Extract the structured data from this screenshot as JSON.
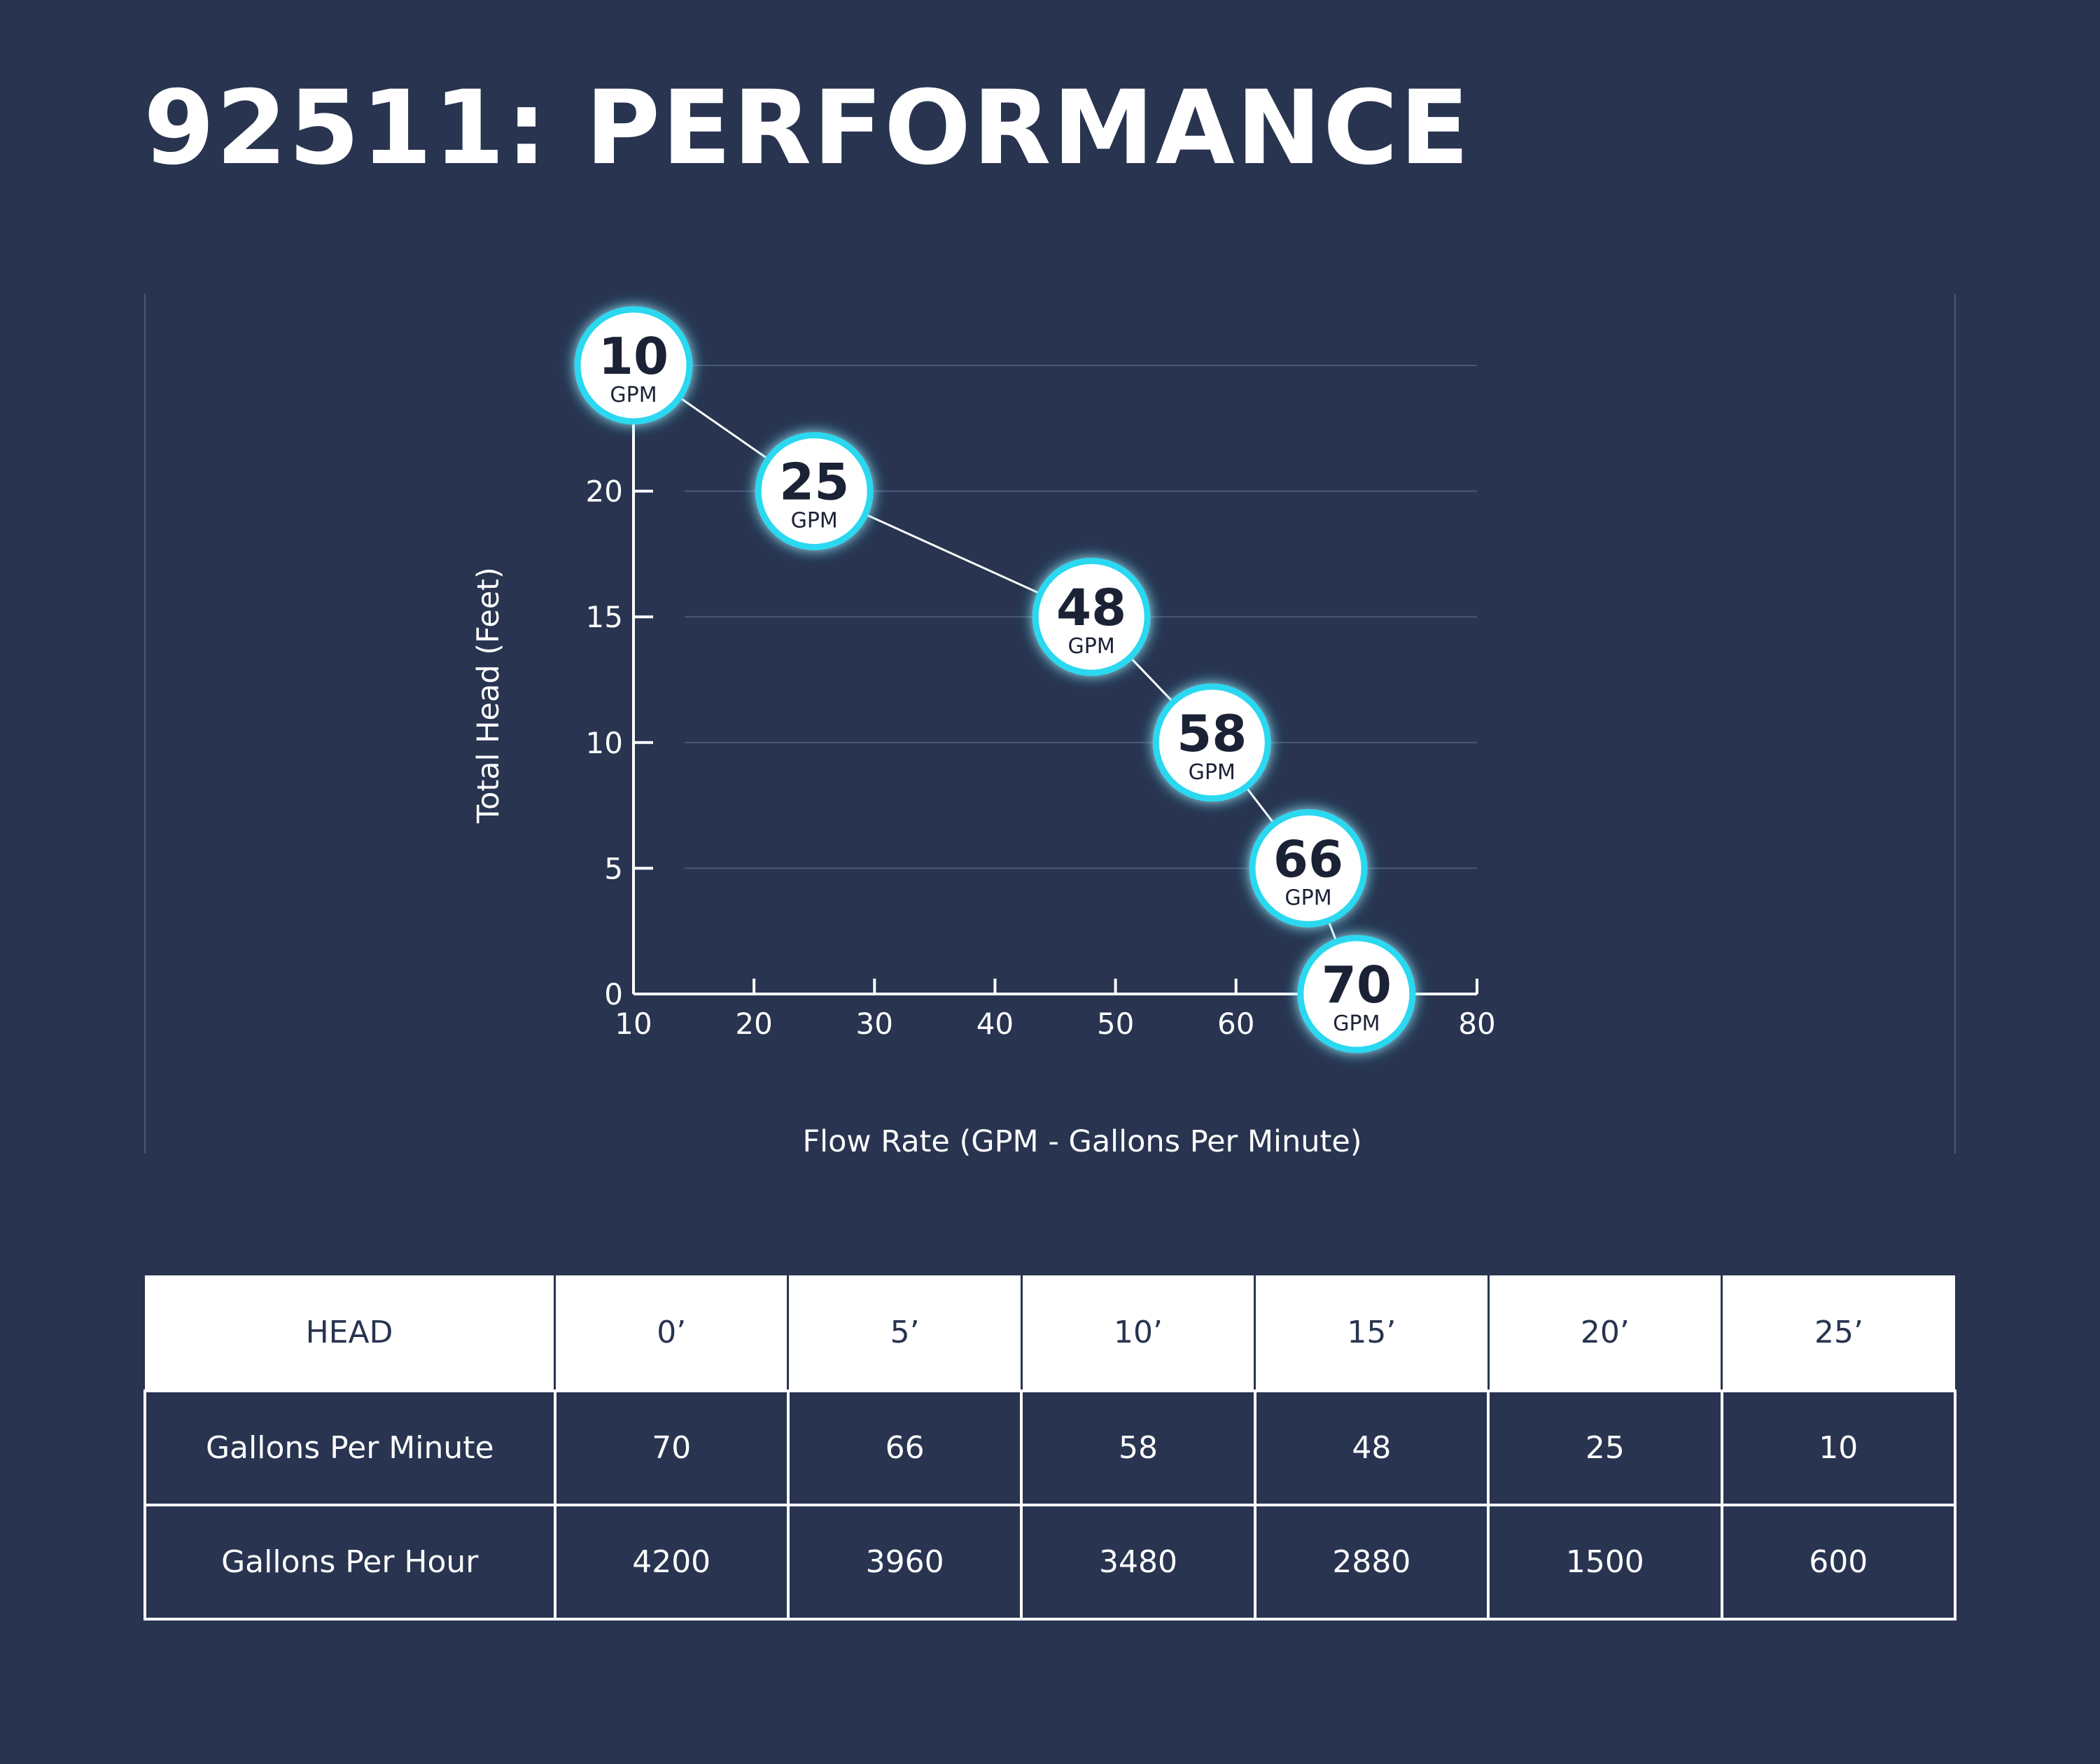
{
  "title": "92511: PERFORMANCE",
  "colors": {
    "background": "#283450",
    "marker_ring": "#29d8f0",
    "marker_fill": "#ffffff",
    "line": "#ffffff",
    "text": "#ffffff"
  },
  "chart_data": {
    "type": "line",
    "title": "",
    "xlabel": "Flow Rate (GPM - Gallons Per Minute)",
    "ylabel": "Total Head (Feet)",
    "xlim": [
      10,
      80
    ],
    "ylim": [
      0,
      25
    ],
    "x_ticks": [
      "10",
      "20",
      "30",
      "40",
      "50",
      "60",
      "70",
      "80"
    ],
    "y_ticks": [
      "0",
      "5",
      "10",
      "15",
      "20"
    ],
    "grid": true,
    "series": [
      {
        "points": [
          {
            "x": 10,
            "y": 25,
            "label": "10",
            "unit": "GPM"
          },
          {
            "x": 25,
            "y": 20,
            "label": "25",
            "unit": "GPM"
          },
          {
            "x": 48,
            "y": 15,
            "label": "48",
            "unit": "GPM"
          },
          {
            "x": 58,
            "y": 10,
            "label": "58",
            "unit": "GPM"
          },
          {
            "x": 66,
            "y": 5,
            "label": "66",
            "unit": "GPM"
          },
          {
            "x": 70,
            "y": 0,
            "label": "70",
            "unit": "GPM"
          }
        ]
      }
    ]
  },
  "table": {
    "headers": [
      "HEAD",
      "0’",
      "5’",
      "10’",
      "15’",
      "20’",
      "25’"
    ],
    "rows": [
      {
        "label": "Gallons Per Minute",
        "values": [
          "70",
          "66",
          "58",
          "48",
          "25",
          "10"
        ]
      },
      {
        "label": "Gallons Per Hour",
        "values": [
          "4200",
          "3960",
          "3480",
          "2880",
          "1500",
          "600"
        ]
      }
    ]
  }
}
